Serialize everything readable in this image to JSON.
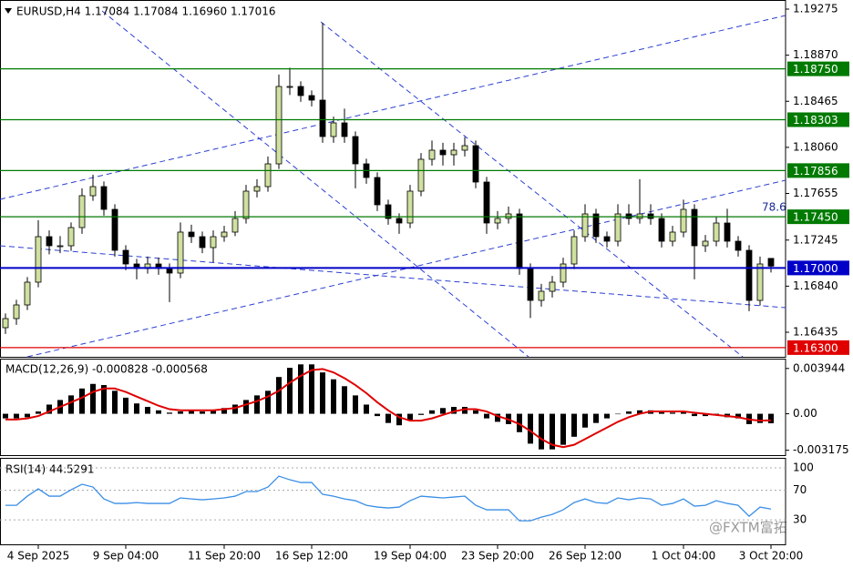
{
  "watermark": "@FXTM富拓",
  "chart_data": [
    {
      "type": "candlestick",
      "title": "EURUSD,H4  1.17084 1.17084 1.16960 1.17016",
      "annotation": "78.6",
      "bull_color": "#cfe0a0",
      "bear_color": "#000000",
      "ylim": [
        1.16219,
        1.19355
      ],
      "yticks": [
        {
          "value": 1.19275,
          "label": "1.19275"
        },
        {
          "value": 1.1887,
          "label": "1.18870"
        },
        {
          "value": 1.18465,
          "label": "1.18465"
        },
        {
          "value": 1.1806,
          "label": "1.18060"
        },
        {
          "value": 1.17655,
          "label": "1.17655"
        },
        {
          "value": 1.17245,
          "label": "1.17245"
        },
        {
          "value": 1.1684,
          "label": "1.16840"
        },
        {
          "value": 1.16435,
          "label": "1.16435"
        }
      ],
      "levels": [
        {
          "value": 1.1875,
          "label": "1.18750",
          "color": "#007a00"
        },
        {
          "value": 1.18303,
          "label": "1.18303",
          "color": "#007a00"
        },
        {
          "value": 1.17856,
          "label": "1.17856",
          "color": "#007a00"
        },
        {
          "value": 1.1745,
          "label": "1.17450",
          "color": "#007a00"
        },
        {
          "value": 1.17,
          "label": "1.17000",
          "color": "#0000c8"
        },
        {
          "value": 1.163,
          "label": "1.16300",
          "color": "#e00000"
        }
      ],
      "categories": [
        null,
        null,
        null,
        "4 Sep 2025",
        null,
        null,
        null,
        null,
        null,
        null,
        null,
        "9 Sep 04:00",
        null,
        null,
        null,
        null,
        null,
        null,
        null,
        null,
        "11 Sep 20:00",
        null,
        null,
        null,
        null,
        null,
        null,
        null,
        "16 Sep 12:00",
        null,
        null,
        null,
        null,
        null,
        null,
        null,
        null,
        "19 Sep 04:00",
        null,
        null,
        null,
        null,
        null,
        null,
        null,
        "23 Sep 20:00",
        null,
        null,
        null,
        null,
        null,
        null,
        null,
        "26 Sep 12:00",
        null,
        null,
        null,
        null,
        null,
        null,
        null,
        null,
        "1 Oct 04:00",
        null,
        null,
        null,
        null,
        null,
        null,
        null,
        "3 Oct 20:00"
      ],
      "candles": [
        [
          1.16475,
          1.166,
          1.1642,
          1.16555
        ],
        [
          1.16555,
          1.1672,
          1.165,
          1.16675
        ],
        [
          1.16675,
          1.1692,
          1.1663,
          1.16875
        ],
        [
          1.16875,
          1.1742,
          1.1683,
          1.17275
        ],
        [
          1.17275,
          1.1733,
          1.1712,
          1.17195
        ],
        [
          1.17195,
          1.1728,
          1.1713,
          1.17195
        ],
        [
          1.17195,
          1.174,
          1.1715,
          1.17355
        ],
        [
          1.17355,
          1.177,
          1.173,
          1.17635
        ],
        [
          1.17635,
          1.1782,
          1.1759,
          1.17715
        ],
        [
          1.17715,
          1.1776,
          1.1746,
          1.17515
        ],
        [
          1.17515,
          1.1756,
          1.171,
          1.17155
        ],
        [
          1.17155,
          1.172,
          1.1698,
          1.17035
        ],
        [
          1.17035,
          1.1708,
          1.169,
          1.16995
        ],
        [
          1.16995,
          1.171,
          1.1695,
          1.17035
        ],
        [
          1.17035,
          1.1709,
          1.1694,
          1.16995
        ],
        [
          1.16995,
          1.1704,
          1.167,
          1.16955
        ],
        [
          1.16955,
          1.174,
          1.1691,
          1.17315
        ],
        [
          1.17315,
          1.1738,
          1.1722,
          1.17275
        ],
        [
          1.17275,
          1.1732,
          1.1713,
          1.17179
        ],
        [
          1.17179,
          1.1733,
          1.1705,
          1.17275
        ],
        [
          1.17275,
          1.1737,
          1.1723,
          1.17315
        ],
        [
          1.17315,
          1.175,
          1.1728,
          1.17435
        ],
        [
          1.17435,
          1.1773,
          1.1739,
          1.17675
        ],
        [
          1.17675,
          1.1778,
          1.1762,
          1.17715
        ],
        [
          1.17715,
          1.1798,
          1.1767,
          1.17915
        ],
        [
          1.17915,
          1.187,
          1.1787,
          1.18595
        ],
        [
          1.18595,
          1.1876,
          1.1852,
          1.18595
        ],
        [
          1.18595,
          1.1864,
          1.1846,
          1.18515
        ],
        [
          1.18515,
          1.1856,
          1.1842,
          1.18475
        ],
        [
          1.18475,
          1.19155,
          1.181,
          1.18155
        ],
        [
          1.18155,
          1.1833,
          1.181,
          1.18275
        ],
        [
          1.18275,
          1.184,
          1.181,
          1.18155
        ],
        [
          1.18155,
          1.182,
          1.177,
          1.17915
        ],
        [
          1.17915,
          1.1796,
          1.1774,
          1.17795
        ],
        [
          1.17795,
          1.1784,
          1.175,
          1.17555
        ],
        [
          1.17555,
          1.176,
          1.1738,
          1.17435
        ],
        [
          1.17435,
          1.1748,
          1.173,
          1.17395
        ],
        [
          1.17395,
          1.1773,
          1.1735,
          1.17675
        ],
        [
          1.17675,
          1.1801,
          1.1763,
          1.17955
        ],
        [
          1.17955,
          1.1812,
          1.179,
          1.18035
        ],
        [
          1.18035,
          1.181,
          1.179,
          1.17995
        ],
        [
          1.17995,
          1.181,
          1.179,
          1.18035
        ],
        [
          1.18035,
          1.1815,
          1.1798,
          1.18075
        ],
        [
          1.18075,
          1.1812,
          1.177,
          1.17755
        ],
        [
          1.17755,
          1.178,
          1.173,
          1.17395
        ],
        [
          1.17395,
          1.175,
          1.1734,
          1.17435
        ],
        [
          1.17435,
          1.1754,
          1.1739,
          1.17475
        ],
        [
          1.17475,
          1.1752,
          1.1694,
          1.16995
        ],
        [
          1.16995,
          1.1704,
          1.1656,
          1.16715
        ],
        [
          1.16715,
          1.1686,
          1.1666,
          1.16795
        ],
        [
          1.16795,
          1.1693,
          1.1674,
          1.16875
        ],
        [
          1.16875,
          1.1709,
          1.1683,
          1.17035
        ],
        [
          1.17035,
          1.1733,
          1.1699,
          1.17275
        ],
        [
          1.17275,
          1.1756,
          1.1723,
          1.17475
        ],
        [
          1.17475,
          1.1752,
          1.1722,
          1.17275
        ],
        [
          1.17275,
          1.1732,
          1.1718,
          1.17235
        ],
        [
          1.17235,
          1.1756,
          1.1719,
          1.17475
        ],
        [
          1.17475,
          1.1756,
          1.1738,
          1.17435
        ],
        [
          1.17435,
          1.1778,
          1.1739,
          1.17475
        ],
        [
          1.17475,
          1.1756,
          1.1738,
          1.17435
        ],
        [
          1.17435,
          1.1748,
          1.1718,
          1.17235
        ],
        [
          1.17235,
          1.1737,
          1.1719,
          1.17315
        ],
        [
          1.17315,
          1.176,
          1.1727,
          1.17515
        ],
        [
          1.17515,
          1.1756,
          1.169,
          1.17195
        ],
        [
          1.17195,
          1.1729,
          1.1714,
          1.17235
        ],
        [
          1.17235,
          1.1745,
          1.1719,
          1.17395
        ],
        [
          1.17395,
          1.1752,
          1.1718,
          1.17235
        ],
        [
          1.17235,
          1.1728,
          1.171,
          1.17155
        ],
        [
          1.17155,
          1.172,
          1.1662,
          1.16715
        ],
        [
          1.16715,
          1.171,
          1.1667,
          1.17035
        ],
        [
          1.17084,
          1.17084,
          1.1696,
          1.17016
        ]
      ]
    },
    {
      "type": "macd",
      "title": "MACD(12,26,9) -0.000828 -0.000568",
      "hist_color": "#000000",
      "signal_color": "#e00000",
      "ylim": [
        -0.0036,
        0.0048
      ],
      "yticks": [
        0.003944,
        {
          "value": 0,
          "label": "0.00"
        },
        -0.003175
      ],
      "histogram": [
        -0.0004,
        -0.0004,
        -0.0003,
        0.0002,
        0.0008,
        0.0012,
        0.0016,
        0.0022,
        0.0026,
        0.0025,
        0.002,
        0.0014,
        0.0009,
        0.0006,
        0.0003,
        0.0001,
        0.0002,
        0.0003,
        0.0002,
        0.0003,
        0.0005,
        0.0008,
        0.0012,
        0.0016,
        0.002,
        0.0032,
        0.004,
        0.0043,
        0.0043,
        0.0036,
        0.003,
        0.0024,
        0.0016,
        0.0008,
        -0.0002,
        -0.0008,
        -0.001,
        -0.0006,
        -0.0001,
        0.0003,
        0.0005,
        0.0006,
        0.0006,
        0.0003,
        -0.0004,
        -0.0007,
        -0.0009,
        -0.0016,
        -0.0026,
        -0.0031,
        -0.0031,
        -0.0027,
        -0.002,
        -0.0012,
        -0.0008,
        -0.0004,
        0,
        0.0002,
        0.0003,
        0.0003,
        0.0002,
        0.0001,
        0.0002,
        -0.0002,
        -0.0002,
        -0.0001,
        -0.0003,
        -0.0004,
        -0.0009,
        -0.0008,
        -0.000828
      ],
      "signal": [
        -0.0005,
        -0.0005,
        -0.0004,
        -0.0002,
        0.0002,
        0.0006,
        0.001,
        0.0014,
        0.0019,
        0.0022,
        0.0022,
        0.0019,
        0.0015,
        0.0011,
        0.0007,
        0.0004,
        0.0003,
        0.0003,
        0.0003,
        0.0003,
        0.0004,
        0.0005,
        0.0008,
        0.0011,
        0.0015,
        0.002,
        0.0027,
        0.0033,
        0.0038,
        0.0039,
        0.0036,
        0.0031,
        0.0025,
        0.0018,
        0.001,
        0.0003,
        -0.0003,
        -0.0006,
        -0.0006,
        -0.0004,
        -0.0001,
        0.0002,
        0.0004,
        0.0004,
        0.0002,
        -0.0002,
        -0.0005,
        -0.0009,
        -0.0015,
        -0.0022,
        -0.0027,
        -0.0029,
        -0.0027,
        -0.0022,
        -0.0017,
        -0.0012,
        -0.0007,
        -0.0003,
        0,
        0.0002,
        0.0002,
        0.0002,
        0.0002,
        0.0001,
        0,
        -0.0001,
        -0.0002,
        -0.0003,
        -0.0005,
        -0.0006,
        -0.000568
      ]
    },
    {
      "type": "line",
      "title": "RSI(14) 44.5291",
      "color": "#3a8ee6",
      "ylim": [
        -3,
        113.5
      ],
      "yticks": [
        100,
        70,
        30
      ],
      "values": [
        49.6,
        49.6,
        61.9,
        71.7,
        61.9,
        61.9,
        70.5,
        77.9,
        74.2,
        58.2,
        52.1,
        52.1,
        53.3,
        52.1,
        52.1,
        52.1,
        59.5,
        58.2,
        57,
        58.2,
        59.5,
        61.9,
        68.1,
        68.1,
        74.2,
        88.9,
        84,
        80.3,
        80.3,
        64.4,
        61.9,
        58.2,
        55.8,
        49.6,
        47.2,
        46,
        47.2,
        55.8,
        61.9,
        60.7,
        59.5,
        60.7,
        61.9,
        49.6,
        43.5,
        43.5,
        43.5,
        28.7,
        28.7,
        33.7,
        37.3,
        43.5,
        53.3,
        58.2,
        53.3,
        52.1,
        59.5,
        57,
        59.5,
        58.2,
        49.6,
        52.1,
        58.2,
        48.4,
        49.6,
        55.8,
        52.1,
        49.6,
        34.9,
        47.2,
        44.5291
      ]
    }
  ]
}
